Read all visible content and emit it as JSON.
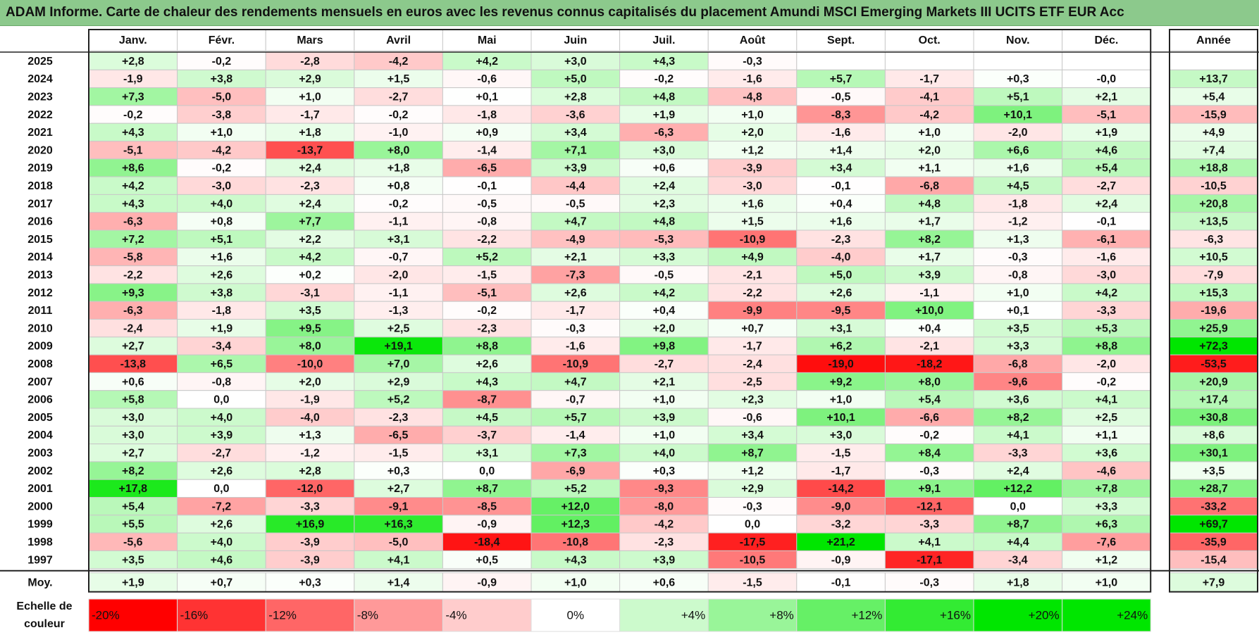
{
  "title": "ADAM Informe. Carte de chaleur des rendements mensuels en euros avec les revenus connus capitalisés du placement Amundi MSCI Emerging Markets III UCITS ETF EUR Acc",
  "chart_data": {
    "type": "heatmap",
    "title": "ADAM Informe. Carte de chaleur des rendements mensuels en euros avec les revenus connus capitalisés du placement Amundi MSCI Emerging Markets III UCITS ETF EUR Acc",
    "columns": [
      "Janv.",
      "Févr.",
      "Mars",
      "Avril",
      "Mai",
      "Juin",
      "Juil.",
      "Août",
      "Sept.",
      "Oct.",
      "Nov.",
      "Déc."
    ],
    "year_column": "Année",
    "rows": [
      {
        "year": "2025",
        "months": [
          "+2,8",
          "-0,2",
          "-2,8",
          "-4,2",
          "+4,2",
          "+3,0",
          "+4,3",
          "-0,3",
          "",
          "",
          "",
          ""
        ],
        "annual": ""
      },
      {
        "year": "2024",
        "months": [
          "-1,9",
          "+3,8",
          "+2,9",
          "+1,5",
          "-0,6",
          "+5,0",
          "-0,2",
          "-1,6",
          "+5,7",
          "-1,7",
          "+0,3",
          "-0,0"
        ],
        "annual": "+13,7"
      },
      {
        "year": "2023",
        "months": [
          "+7,3",
          "-5,0",
          "+1,0",
          "-2,7",
          "+0,1",
          "+2,8",
          "+4,8",
          "-4,8",
          "-0,5",
          "-4,1",
          "+5,1",
          "+2,1"
        ],
        "annual": "+5,4"
      },
      {
        "year": "2022",
        "months": [
          "-0,2",
          "-3,8",
          "-1,7",
          "-0,2",
          "-1,8",
          "-3,6",
          "+1,9",
          "+1,0",
          "-8,3",
          "-4,2",
          "+10,1",
          "-5,1"
        ],
        "annual": "-15,9"
      },
      {
        "year": "2021",
        "months": [
          "+4,3",
          "+1,0",
          "+1,8",
          "-1,0",
          "+0,9",
          "+3,4",
          "-6,3",
          "+2,0",
          "-1,6",
          "+1,0",
          "-2,0",
          "+1,9"
        ],
        "annual": "+4,9"
      },
      {
        "year": "2020",
        "months": [
          "-5,1",
          "-4,2",
          "-13,7",
          "+8,0",
          "-1,4",
          "+7,1",
          "+3,0",
          "+1,2",
          "+1,4",
          "+2,0",
          "+6,6",
          "+4,6"
        ],
        "annual": "+7,4"
      },
      {
        "year": "2019",
        "months": [
          "+8,6",
          "-0,2",
          "+2,4",
          "+1,8",
          "-6,5",
          "+3,9",
          "+0,6",
          "-3,9",
          "+3,4",
          "+1,1",
          "+1,6",
          "+5,4"
        ],
        "annual": "+18,8"
      },
      {
        "year": "2018",
        "months": [
          "+4,2",
          "-3,0",
          "-2,3",
          "+0,8",
          "-0,1",
          "-4,4",
          "+2,4",
          "-3,0",
          "-0,1",
          "-6,8",
          "+4,5",
          "-2,7"
        ],
        "annual": "-10,5"
      },
      {
        "year": "2017",
        "months": [
          "+4,3",
          "+4,0",
          "+2,4",
          "-0,2",
          "-0,5",
          "-0,5",
          "+2,3",
          "+1,6",
          "+0,4",
          "+4,8",
          "-1,8",
          "+2,4"
        ],
        "annual": "+20,8"
      },
      {
        "year": "2016",
        "months": [
          "-6,3",
          "+0,8",
          "+7,7",
          "-1,1",
          "-0,8",
          "+4,7",
          "+4,8",
          "+1,5",
          "+1,6",
          "+1,7",
          "-1,2",
          "-0,1"
        ],
        "annual": "+13,5"
      },
      {
        "year": "2015",
        "months": [
          "+7,2",
          "+5,1",
          "+2,2",
          "+3,1",
          "-2,2",
          "-4,9",
          "-5,3",
          "-10,9",
          "-2,3",
          "+8,2",
          "+1,3",
          "-6,1"
        ],
        "annual": "-6,3"
      },
      {
        "year": "2014",
        "months": [
          "-5,8",
          "+1,6",
          "+4,2",
          "-0,7",
          "+5,2",
          "+2,1",
          "+3,3",
          "+4,9",
          "-4,0",
          "+1,7",
          "-0,3",
          "-1,6"
        ],
        "annual": "+10,5"
      },
      {
        "year": "2013",
        "months": [
          "-2,2",
          "+2,6",
          "+0,2",
          "-2,0",
          "-1,5",
          "-7,3",
          "-0,5",
          "-2,1",
          "+5,0",
          "+3,9",
          "-0,8",
          "-3,0"
        ],
        "annual": "-7,9"
      },
      {
        "year": "2012",
        "months": [
          "+9,3",
          "+3,8",
          "-3,1",
          "-1,1",
          "-5,1",
          "+2,6",
          "+4,2",
          "-2,2",
          "+2,6",
          "-1,1",
          "+1,0",
          "+4,2"
        ],
        "annual": "+15,3"
      },
      {
        "year": "2011",
        "months": [
          "-6,3",
          "-1,8",
          "+3,5",
          "-1,3",
          "-0,2",
          "-1,7",
          "+0,4",
          "-9,9",
          "-9,5",
          "+10,0",
          "+0,1",
          "-3,3"
        ],
        "annual": "-19,6"
      },
      {
        "year": "2010",
        "months": [
          "-2,4",
          "+1,9",
          "+9,5",
          "+2,5",
          "-2,3",
          "-0,3",
          "+2,0",
          "+0,7",
          "+3,1",
          "+0,4",
          "+3,5",
          "+5,3"
        ],
        "annual": "+25,9"
      },
      {
        "year": "2009",
        "months": [
          "+2,7",
          "-3,4",
          "+8,0",
          "+19,1",
          "+8,8",
          "-1,6",
          "+9,8",
          "-1,7",
          "+6,2",
          "-2,1",
          "+3,3",
          "+8,8"
        ],
        "annual": "+72,3"
      },
      {
        "year": "2008",
        "months": [
          "-13,8",
          "+6,5",
          "-10,0",
          "+7,0",
          "+2,6",
          "-10,9",
          "-2,7",
          "-2,4",
          "-19,0",
          "-18,2",
          "-6,8",
          "-2,0"
        ],
        "annual": "-53,5"
      },
      {
        "year": "2007",
        "months": [
          "+0,6",
          "-0,8",
          "+2,0",
          "+2,9",
          "+4,3",
          "+4,7",
          "+2,1",
          "-2,5",
          "+9,2",
          "+8,0",
          "-9,6",
          "-0,2"
        ],
        "annual": "+20,9"
      },
      {
        "year": "2006",
        "months": [
          "+5,8",
          "0,0",
          "-1,9",
          "+5,2",
          "-8,7",
          "-0,7",
          "+1,0",
          "+2,3",
          "+1,0",
          "+5,4",
          "+3,6",
          "+4,1"
        ],
        "annual": "+17,4"
      },
      {
        "year": "2005",
        "months": [
          "+3,0",
          "+4,0",
          "-4,0",
          "-2,3",
          "+4,5",
          "+5,7",
          "+3,9",
          "-0,6",
          "+10,1",
          "-6,6",
          "+8,2",
          "+2,5"
        ],
        "annual": "+30,8"
      },
      {
        "year": "2004",
        "months": [
          "+3,0",
          "+3,9",
          "+1,3",
          "-6,5",
          "-3,7",
          "-1,4",
          "+1,0",
          "+3,4",
          "+3,0",
          "-0,2",
          "+4,1",
          "+1,1"
        ],
        "annual": "+8,6"
      },
      {
        "year": "2003",
        "months": [
          "+2,7",
          "-2,7",
          "-1,2",
          "-1,5",
          "+3,1",
          "+7,3",
          "+4,0",
          "+8,7",
          "-1,5",
          "+8,4",
          "-3,3",
          "+3,6"
        ],
        "annual": "+30,1"
      },
      {
        "year": "2002",
        "months": [
          "+8,2",
          "+2,6",
          "+2,8",
          "+0,3",
          "0,0",
          "-6,9",
          "+0,3",
          "+1,2",
          "-1,7",
          "-0,3",
          "+2,4",
          "-4,6"
        ],
        "annual": "+3,5"
      },
      {
        "year": "2001",
        "months": [
          "+17,8",
          "0,0",
          "-12,0",
          "+2,7",
          "+8,7",
          "+5,2",
          "-9,3",
          "+2,9",
          "-14,2",
          "+9,1",
          "+12,2",
          "+7,8"
        ],
        "annual": "+28,7"
      },
      {
        "year": "2000",
        "months": [
          "+5,4",
          "-7,2",
          "-3,3",
          "-9,1",
          "-8,5",
          "+12,0",
          "-8,0",
          "-0,3",
          "-9,0",
          "-12,1",
          "0,0",
          "+3,3"
        ],
        "annual": "-33,2"
      },
      {
        "year": "1999",
        "months": [
          "+5,5",
          "+2,6",
          "+16,9",
          "+16,3",
          "-0,9",
          "+12,3",
          "-4,2",
          "0,0",
          "-3,2",
          "-3,3",
          "+8,7",
          "+6,3"
        ],
        "annual": "+69,7"
      },
      {
        "year": "1998",
        "months": [
          "-5,6",
          "+4,0",
          "-3,9",
          "-5,0",
          "-18,4",
          "-10,8",
          "-2,3",
          "-17,5",
          "+21,2",
          "+4,1",
          "+4,4",
          "-7,6"
        ],
        "annual": "-35,9"
      },
      {
        "year": "1997",
        "months": [
          "+3,5",
          "+4,6",
          "-3,9",
          "+4,1",
          "+0,5",
          "+4,3",
          "+3,9",
          "-10,5",
          "-0,9",
          "-17,1",
          "-3,4",
          "+1,2"
        ],
        "annual": "-15,4"
      }
    ],
    "average": {
      "label": "Moy.",
      "months": [
        "+1,9",
        "+0,7",
        "+0,3",
        "+1,4",
        "-0,9",
        "+1,0",
        "+0,6",
        "-1,5",
        "-0,1",
        "-0,3",
        "+1,8",
        "+1,0"
      ],
      "annual": "+7,9"
    },
    "scale": {
      "label_line1": "Echelle de",
      "label_line2": "couleur",
      "steps": [
        "-20%",
        "-16%",
        "-12%",
        "-8%",
        "-4%",
        "0%",
        "+4%",
        "+8%",
        "+12%",
        "+16%",
        "+20%",
        "+24%"
      ],
      "step_values": [
        -20,
        -16,
        -12,
        -8,
        -4,
        0,
        4,
        8,
        12,
        16,
        20,
        24
      ]
    },
    "colors": {
      "negative_max": "#ff0000",
      "neutral": "#ffffff",
      "positive_max": "#00e600",
      "title_background": "#8cc98c"
    }
  }
}
